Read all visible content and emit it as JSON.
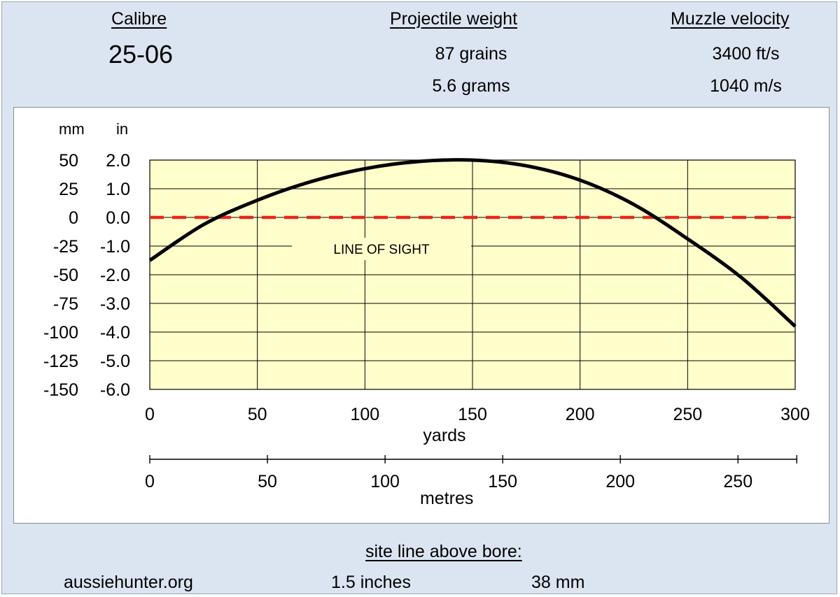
{
  "header": {
    "calibre_label": "Calibre",
    "calibre_value": "25-06",
    "weight_label": "Projectile weight",
    "weight_grains": "87 grains",
    "weight_grams": "5.6 grams",
    "velocity_label": "Muzzle velocity",
    "velocity_fps": "3400 ft/s",
    "velocity_ms": "1040 m/s"
  },
  "footer": {
    "site": "aussiehunter.org",
    "sightline_label": "site line above bore:",
    "sightline_in": "1.5 inches",
    "sightline_mm": "38 mm"
  },
  "chart_data": {
    "type": "line",
    "annotation": "LINE OF SIGHT",
    "xlabel": "yards",
    "xlabel_secondary": "metres",
    "y_unit_left": "mm",
    "y_unit_right": "in",
    "xlim": [
      0,
      300
    ],
    "ylim": [
      -6.0,
      2.0
    ],
    "grid": true,
    "x_ticks": [
      "0",
      "50",
      "100",
      "150",
      "200",
      "250",
      "300"
    ],
    "x2_ticks": [
      "0",
      "50",
      "100",
      "150",
      "200",
      "250"
    ],
    "x2_tick_values_m": [
      0,
      50,
      100,
      150,
      200,
      250
    ],
    "y_ticks_in": [
      "2.0",
      "1.0",
      "0.0",
      "-1.0",
      "-2.0",
      "-3.0",
      "-4.0",
      "-5.0",
      "-6.0"
    ],
    "y_ticks_mm": [
      "50",
      "25",
      "0",
      "-25",
      "-50",
      "-75",
      "-100",
      "-125",
      "-150"
    ],
    "y_tick_values_in": [
      2,
      1,
      0,
      -1,
      -2,
      -3,
      -4,
      -5,
      -6
    ],
    "series": [
      {
        "color": "#000000",
        "x": [
          0,
          25,
          50,
          75,
          100,
          125,
          150,
          175,
          200,
          225,
          250,
          275,
          300
        ],
        "y": [
          -1.5,
          -0.25,
          0.6,
          1.25,
          1.7,
          1.95,
          2.0,
          1.8,
          1.3,
          0.45,
          -0.75,
          -2.1,
          -3.8
        ]
      },
      {
        "color": "#e8281e",
        "dashed": true,
        "x": [
          0,
          300
        ],
        "y": [
          0,
          0
        ]
      }
    ],
    "colors": {
      "plot_bg": "#ffffcc",
      "grid": "#000000",
      "frame_bg": "#dbe5f1"
    }
  }
}
